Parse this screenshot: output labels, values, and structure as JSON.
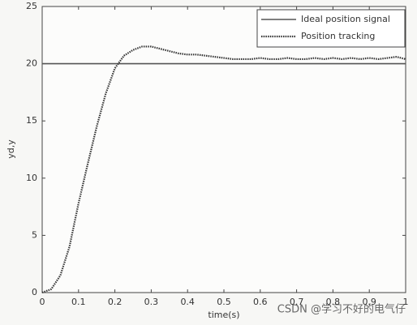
{
  "chart_data": {
    "type": "line",
    "x": [
      0,
      0.025,
      0.05,
      0.075,
      0.1,
      0.125,
      0.15,
      0.175,
      0.2,
      0.225,
      0.25,
      0.275,
      0.3,
      0.325,
      0.35,
      0.375,
      0.4,
      0.425,
      0.45,
      0.475,
      0.5,
      0.525,
      0.55,
      0.575,
      0.6,
      0.625,
      0.65,
      0.675,
      0.7,
      0.725,
      0.75,
      0.775,
      0.8,
      0.825,
      0.85,
      0.875,
      0.9,
      0.925,
      0.95,
      0.975,
      1
    ],
    "series": [
      {
        "name": "Ideal position signal",
        "color": "#555555",
        "style": "solid",
        "values": [
          20,
          20,
          20,
          20,
          20,
          20,
          20,
          20,
          20,
          20,
          20,
          20,
          20,
          20,
          20,
          20,
          20,
          20,
          20,
          20,
          20,
          20,
          20,
          20,
          20,
          20,
          20,
          20,
          20,
          20,
          20,
          20,
          20,
          20,
          20,
          20,
          20,
          20,
          20,
          20,
          20
        ]
      },
      {
        "name": "Position tracking",
        "color": "#333333",
        "style": "dotted",
        "values": [
          0,
          0.3,
          1.5,
          4,
          7.8,
          11.2,
          14.5,
          17.4,
          19.6,
          20.7,
          21.2,
          21.5,
          21.5,
          21.3,
          21.1,
          20.9,
          20.8,
          20.8,
          20.7,
          20.6,
          20.5,
          20.4,
          20.4,
          20.4,
          20.5,
          20.4,
          20.4,
          20.5,
          20.4,
          20.4,
          20.5,
          20.4,
          20.5,
          20.4,
          20.5,
          20.4,
          20.5,
          20.4,
          20.5,
          20.6,
          20.4
        ]
      }
    ],
    "xlabel": "time(s)",
    "ylabel": "yd,y",
    "xlim": [
      0,
      1
    ],
    "xticks": [
      0,
      0.1,
      0.2,
      0.3,
      0.4,
      0.5,
      0.6,
      0.7,
      0.8,
      0.9,
      1
    ],
    "ylim": [
      0,
      25
    ],
    "yticks": [
      0,
      5,
      10,
      15,
      20,
      25
    ],
    "legend": "upper right",
    "grid": false,
    "watermark": "CSDN @学习不好的电气仔"
  }
}
